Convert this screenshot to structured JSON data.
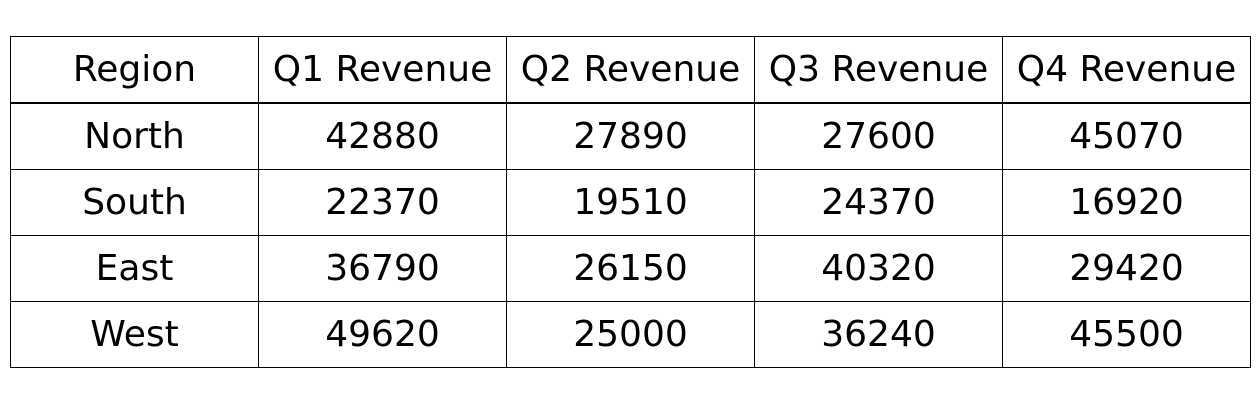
{
  "chart_data": {
    "type": "table",
    "columns": [
      "Region",
      "Q1 Revenue",
      "Q2 Revenue",
      "Q3 Revenue",
      "Q4 Revenue"
    ],
    "rows": [
      [
        "North",
        "42880",
        "27890",
        "27600",
        "45070"
      ],
      [
        "South",
        "22370",
        "19510",
        "24370",
        "16920"
      ],
      [
        "East",
        "36790",
        "26150",
        "40320",
        "29420"
      ],
      [
        "West",
        "49620",
        "25000",
        "36240",
        "45500"
      ]
    ]
  }
}
